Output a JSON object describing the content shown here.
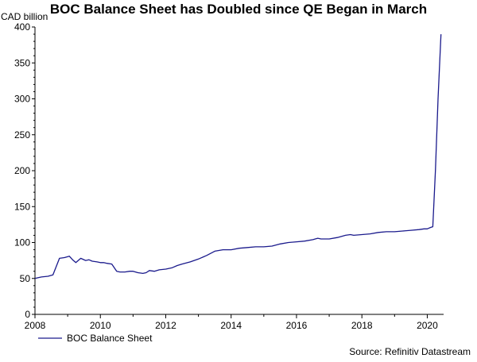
{
  "chart_data": {
    "type": "line",
    "title": "BOC Balance Sheet has Doubled since QE Began in March",
    "ylabel": "CAD billion",
    "xlabel": "",
    "xlim": [
      2008,
      2020.5
    ],
    "ylim": [
      0,
      400
    ],
    "x_ticks": [
      "2008",
      "2010",
      "2012",
      "2014",
      "2016",
      "2018",
      "2020"
    ],
    "y_ticks": [
      "0",
      "50",
      "100",
      "150",
      "200",
      "250",
      "300",
      "350",
      "400"
    ],
    "grid": false,
    "legend": "bottom-left",
    "source": "Source: Refinitiv Datastream",
    "colors": {
      "series": "#1a1a8c",
      "axis": "#000000"
    },
    "series": [
      {
        "name": "BOC Balance Sheet",
        "x": [
          2008.0,
          2008.1,
          2008.2,
          2008.4,
          2008.55,
          2008.75,
          2008.9,
          2009.05,
          2009.15,
          2009.25,
          2009.4,
          2009.55,
          2009.65,
          2009.75,
          2009.9,
          2010.0,
          2010.1,
          2010.2,
          2010.35,
          2010.5,
          2010.6,
          2010.75,
          2010.9,
          2011.0,
          2011.15,
          2011.3,
          2011.4,
          2011.5,
          2011.65,
          2011.8,
          2012.0,
          2012.2,
          2012.35,
          2012.5,
          2012.75,
          2013.0,
          2013.25,
          2013.5,
          2013.75,
          2014.0,
          2014.25,
          2014.5,
          2014.75,
          2015.0,
          2015.25,
          2015.5,
          2015.75,
          2016.0,
          2016.25,
          2016.5,
          2016.65,
          2016.75,
          2017.0,
          2017.25,
          2017.5,
          2017.65,
          2017.75,
          2018.0,
          2018.25,
          2018.5,
          2018.75,
          2019.0,
          2019.25,
          2019.5,
          2019.75,
          2019.9,
          2020.0,
          2020.1,
          2020.17,
          2020.25,
          2020.33,
          2020.42
        ],
        "y": [
          50,
          51,
          52,
          53,
          55,
          78,
          79,
          81,
          76,
          72,
          78,
          75,
          76,
          74,
          73,
          72,
          72,
          71,
          70,
          60,
          59,
          59,
          60,
          60,
          58,
          57,
          58,
          61,
          60,
          62,
          63,
          65,
          68,
          70,
          73,
          77,
          82,
          88,
          90,
          90,
          92,
          93,
          94,
          94,
          95,
          98,
          100,
          101,
          102,
          104,
          106,
          105,
          105,
          107,
          110,
          111,
          110,
          111,
          112,
          114,
          115,
          115,
          116,
          117,
          118,
          119,
          119,
          121,
          122,
          200,
          300,
          390
        ]
      }
    ]
  }
}
